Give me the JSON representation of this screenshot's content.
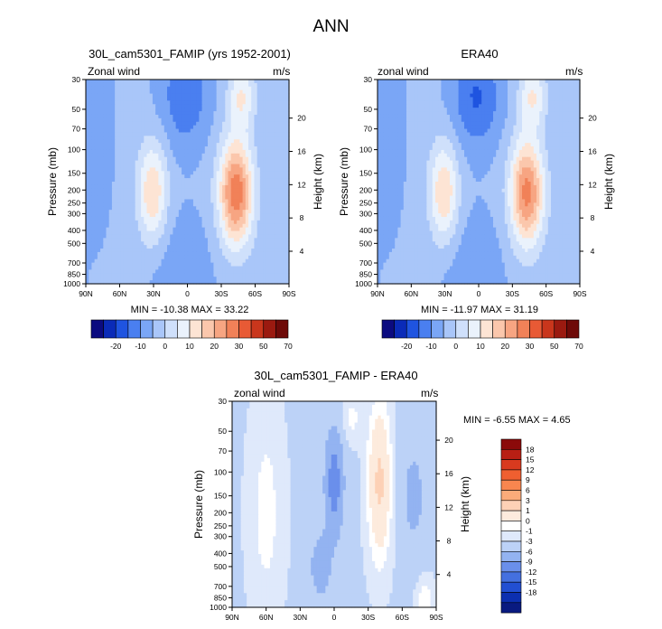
{
  "figure_title": "ANN",
  "chart_data": [
    {
      "type": "heatmap",
      "title": "30L_cam5301_FAMIP (yrs 1952-2001)",
      "subtitle_left": "Zonal wind",
      "subtitle_right": "m/s",
      "ylabel": "Pressure (mb)",
      "ylabel_right": "Height (km)",
      "x_ticks": [
        "90N",
        "60N",
        "30N",
        "0",
        "30S",
        "60S",
        "90S"
      ],
      "y_ticks": [
        "30",
        "50",
        "70",
        "100",
        "150",
        "200",
        "250",
        "300",
        "400",
        "500",
        "700",
        "850",
        "1000"
      ],
      "y_right_ticks": [
        "20",
        "16",
        "12",
        "8",
        "4"
      ],
      "stats": "MIN = -10.38  MAX = 33.22",
      "colorbar_labels": [
        "-20",
        "-10",
        "0",
        "10",
        "20",
        "30",
        "50",
        "70"
      ],
      "jets": [
        {
          "lat": -45,
          "p": 200,
          "peak": 33.22
        },
        {
          "lat": 30,
          "p": 200,
          "peak": 20
        },
        {
          "lat": 0,
          "p": 40,
          "peak": -10.38
        }
      ]
    },
    {
      "type": "heatmap",
      "title": "ERA40",
      "subtitle_left": "zonal wind",
      "subtitle_right": "m/s",
      "ylabel": "Pressure (mb)",
      "ylabel_right": "Height (km)",
      "x_ticks": [
        "90N",
        "60N",
        "30N",
        "0",
        "30S",
        "60S",
        "90S"
      ],
      "y_ticks": [
        "30",
        "50",
        "70",
        "100",
        "150",
        "200",
        "250",
        "300",
        "400",
        "500",
        "700",
        "850",
        "1000"
      ],
      "y_right_ticks": [
        "20",
        "16",
        "12",
        "8",
        "4"
      ],
      "stats": "MIN = -11.97  MAX =  31.19",
      "colorbar_labels": [
        "-20",
        "-10",
        "0",
        "10",
        "20",
        "30",
        "50",
        "70"
      ],
      "jets": [
        {
          "lat": -45,
          "p": 200,
          "peak": 31.19
        },
        {
          "lat": 30,
          "p": 200,
          "peak": 18
        },
        {
          "lat": 0,
          "p": 40,
          "peak": -11.97
        }
      ]
    },
    {
      "type": "heatmap",
      "title": "30L_cam5301_FAMIP - ERA40",
      "subtitle_left": "zonal wind",
      "subtitle_right": "m/s",
      "ylabel": "Pressure (mb)",
      "ylabel_right": "Height (km)",
      "x_ticks": [
        "90N",
        "60N",
        "30N",
        "0",
        "30S",
        "60S",
        "90S"
      ],
      "y_ticks": [
        "30",
        "50",
        "70",
        "100",
        "150",
        "200",
        "250",
        "300",
        "400",
        "500",
        "700",
        "850",
        "1000"
      ],
      "y_right_ticks": [
        "20",
        "16",
        "12",
        "8",
        "4"
      ],
      "stats": "MIN = -6.55  MAX =  4.65",
      "colorbar_labels": [
        "18",
        "15",
        "12",
        "9",
        "6",
        "3",
        "1",
        "0",
        "-1",
        "-3",
        "-6",
        "-9",
        "-12",
        "-15",
        "-18"
      ]
    }
  ],
  "colors": {
    "abs_scale": [
      "#0b0b80",
      "#0a2bb8",
      "#1f54e0",
      "#4a7ff0",
      "#7aa6f6",
      "#a9c6f9",
      "#cfe0fb",
      "#eaf2fc",
      "#fde4d4",
      "#fbc7ac",
      "#f7a582",
      "#f18158",
      "#e85a35",
      "#c9361c",
      "#9b1a10",
      "#6e0a08"
    ],
    "diff_scale": [
      "#8b0a0a",
      "#b81f14",
      "#d83a1f",
      "#ef5f30",
      "#f8864f",
      "#fbab7a",
      "#fdd1b6",
      "#fdebdd",
      "#ffffff",
      "#dfe9fb",
      "#bcd2f7",
      "#93b3f1",
      "#6a8feb",
      "#4470e0",
      "#224fd2",
      "#0c2fb0",
      "#091a80"
    ]
  }
}
